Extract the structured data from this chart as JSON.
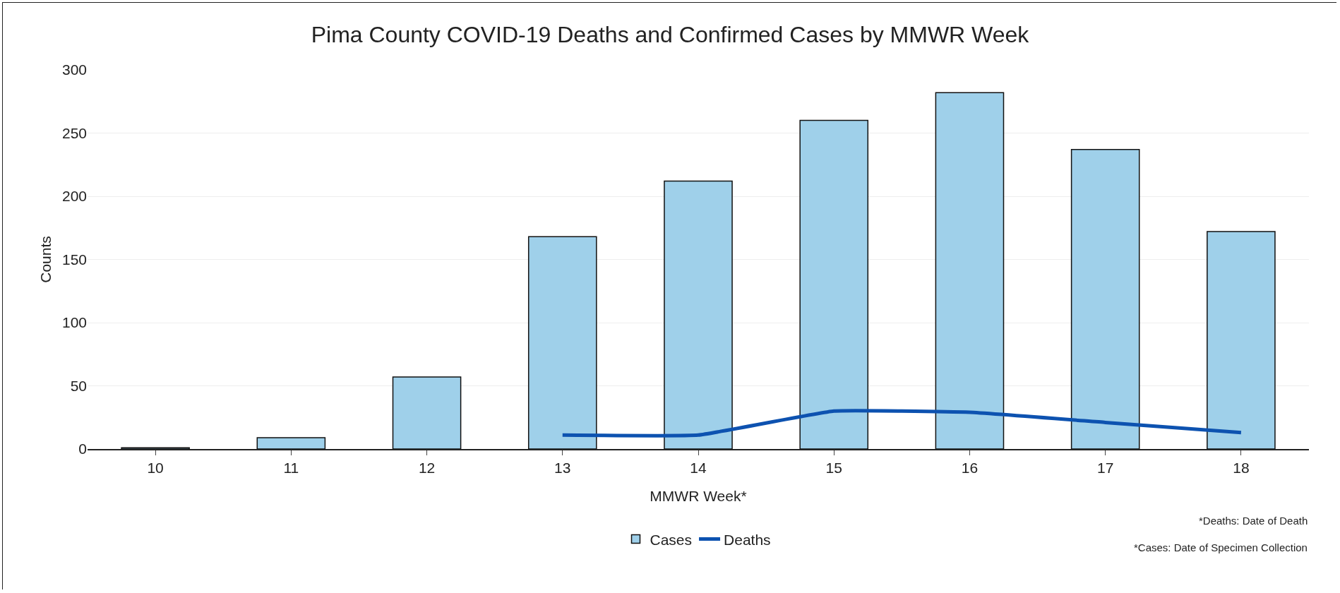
{
  "chart_data": {
    "type": "bar",
    "title": "Pima County COVID-19 Deaths and Confirmed Cases by MMWR Week",
    "xlabel": "MMWR Week*",
    "ylabel": "Counts",
    "categories": [
      "10",
      "11",
      "12",
      "13",
      "14",
      "15",
      "16",
      "17",
      "18"
    ],
    "series": [
      {
        "name": "Cases",
        "color": "#9fd0ea",
        "values": [
          1,
          9,
          57,
          168,
          212,
          260,
          282,
          237,
          172
        ]
      },
      {
        "name": "Deaths",
        "type": "line",
        "color": "#0d52b0",
        "values": [
          null,
          null,
          null,
          11,
          11,
          30,
          29,
          21,
          13
        ]
      }
    ],
    "ylim": [
      0,
      300
    ],
    "yticks": [
      0,
      50,
      100,
      150,
      200,
      250,
      300
    ],
    "grid": "y",
    "legend": "bottom",
    "marker": "none",
    "line_style": "solid",
    "annotations": [
      "*Deaths: Date of Death",
      "*Cases: Date of Specimen Collection"
    ]
  }
}
